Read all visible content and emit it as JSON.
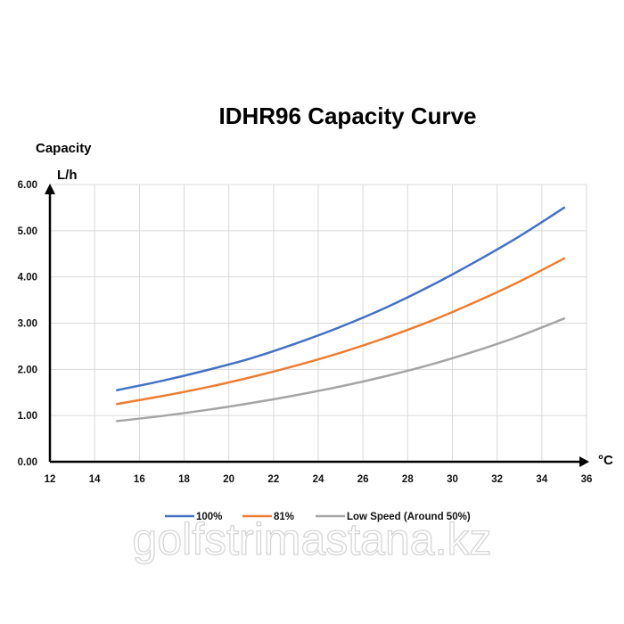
{
  "chart_data": {
    "type": "line",
    "title": "IDHR96  Capacity Curve",
    "ylabel_line1": "Capacity",
    "ylabel_line2": "L/h",
    "xlabel": "°C",
    "xlim": [
      12,
      36
    ],
    "ylim": [
      0,
      6
    ],
    "xticks": [
      12,
      14,
      16,
      18,
      20,
      22,
      24,
      26,
      28,
      30,
      32,
      34,
      36
    ],
    "yticks": [
      "0.00",
      "1.00",
      "2.00",
      "3.00",
      "4.00",
      "5.00",
      "6.00"
    ],
    "grid": true,
    "legend_position": "bottom",
    "x": [
      15,
      17,
      19,
      21,
      23,
      25,
      27,
      29,
      31,
      33,
      35
    ],
    "series": [
      {
        "name": "100%",
        "color": "#4472c4",
        "values": [
          1.55,
          1.75,
          1.98,
          2.24,
          2.56,
          2.92,
          3.33,
          3.8,
          4.32,
          4.88,
          5.5
        ]
      },
      {
        "name": "81%",
        "color": "#ed7d31",
        "values": [
          1.25,
          1.42,
          1.61,
          1.83,
          2.08,
          2.36,
          2.68,
          3.04,
          3.45,
          3.9,
          4.4
        ]
      },
      {
        "name": "Low Speed (Around 50%)",
        "color": "#a5a5a5",
        "values": [
          0.88,
          0.99,
          1.12,
          1.27,
          1.44,
          1.63,
          1.85,
          2.1,
          2.39,
          2.72,
          3.1
        ]
      }
    ]
  },
  "watermark": "golfstrimastana.kz"
}
